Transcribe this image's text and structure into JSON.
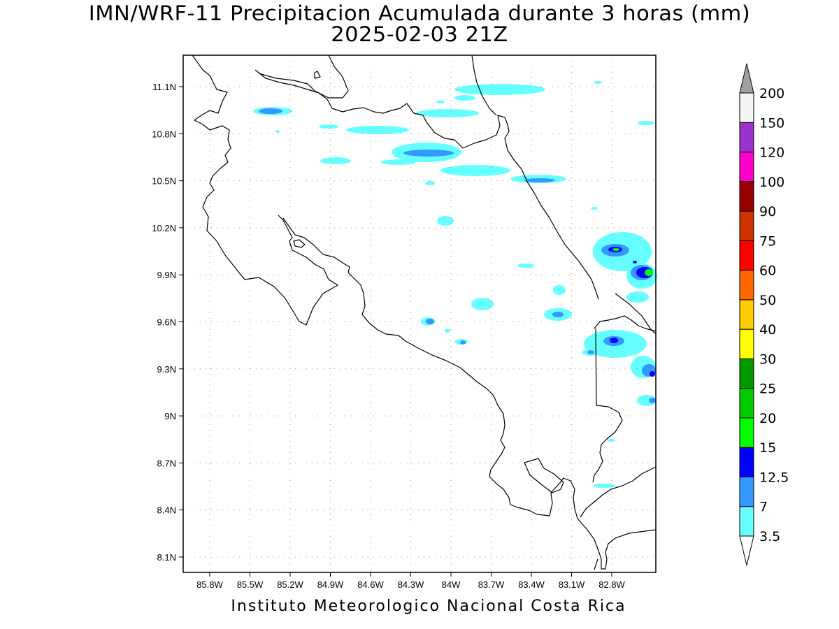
{
  "title": {
    "line1": "IMN/WRF-11 Precipitacion Acumulada durante 3 horas (mm)",
    "line2": "2025-02-03 21Z"
  },
  "footer": "Instituto Meteorologico Nacional Costa Rica",
  "map": {
    "region": "Costa Rica",
    "variable": "Precipitacion Acumulada durante 3 horas",
    "units": "mm",
    "lon_ticks": [
      "85.8W",
      "85.5W",
      "85.2W",
      "84.9W",
      "84.6W",
      "84.3W",
      "84W",
      "83.7W",
      "83.4W",
      "83.1W",
      "82.8W"
    ],
    "lat_ticks": [
      "11.1N",
      "10.8N",
      "10.5N",
      "10.2N",
      "9.9N",
      "9.6N",
      "9.3N",
      "9N",
      "8.7N",
      "8.4N",
      "8.1N"
    ],
    "gridlines": "dotted"
  },
  "colorbar": {
    "levels": [
      "3.5",
      "7",
      "12.5",
      "15",
      "20",
      "25",
      "30",
      "40",
      "50",
      "60",
      "75",
      "90",
      "100",
      "120",
      "150",
      "200"
    ],
    "colors": [
      "#66ffff",
      "#3399ff",
      "#0000ff",
      "#00ff00",
      "#00cc00",
      "#009900",
      "#ffff00",
      "#ffcc00",
      "#ff6600",
      "#ff0000",
      "#cc3300",
      "#990000",
      "#ff00cc",
      "#9933cc",
      "#f5f5f5"
    ],
    "over_color": "#a0a0a0",
    "under_color": "#ffffff"
  }
}
